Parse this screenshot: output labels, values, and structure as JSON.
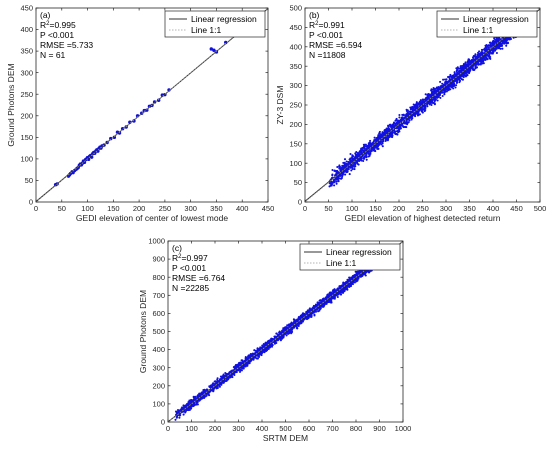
{
  "chart_data": [
    {
      "type": "scatter",
      "panel_label": "(a)",
      "xlabel": "GEDI elevation of center of lowest mode",
      "ylabel": "Ground Photons DEM",
      "xlim": [
        0,
        450
      ],
      "ylim": [
        0,
        450
      ],
      "xticks": [
        "0",
        "50",
        "100",
        "150",
        "200",
        "250",
        "300",
        "350",
        "400",
        "450"
      ],
      "yticks": [
        "0",
        "50",
        "100",
        "150",
        "200",
        "250",
        "300",
        "350",
        "400",
        "450"
      ],
      "stats": {
        "r2": "=0.995",
        "p": "P <0.001",
        "rmse": "RMSE =5.733",
        "n": "N = 61"
      },
      "legend": {
        "position": "top-right",
        "entries": [
          "Linear regression",
          "Line 1:1"
        ]
      },
      "regression": {
        "slope": 0.995,
        "intercept": 1.0
      },
      "points": [
        [
          38,
          40
        ],
        [
          41,
          42
        ],
        [
          63,
          60
        ],
        [
          65,
          63
        ],
        [
          67,
          66
        ],
        [
          70,
          70
        ],
        [
          72,
          68
        ],
        [
          75,
          73
        ],
        [
          78,
          76
        ],
        [
          80,
          78
        ],
        [
          82,
          80
        ],
        [
          84,
          85
        ],
        [
          86,
          88
        ],
        [
          88,
          86
        ],
        [
          90,
          90
        ],
        [
          92,
          95
        ],
        [
          94,
          92
        ],
        [
          96,
          98
        ],
        [
          98,
          100
        ],
        [
          100,
          103
        ],
        [
          102,
          99
        ],
        [
          104,
          106
        ],
        [
          106,
          108
        ],
        [
          108,
          104
        ],
        [
          110,
          112
        ],
        [
          112,
          115
        ],
        [
          114,
          113
        ],
        [
          116,
          118
        ],
        [
          118,
          121
        ],
        [
          120,
          118
        ],
        [
          122,
          124
        ],
        [
          124,
          127
        ],
        [
          126,
          125
        ],
        [
          128,
          130
        ],
        [
          132,
          132
        ],
        [
          138,
          138
        ],
        [
          145,
          147
        ],
        [
          152,
          150
        ],
        [
          158,
          162
        ],
        [
          162,
          160
        ],
        [
          168,
          170
        ],
        [
          175,
          174
        ],
        [
          182,
          185
        ],
        [
          190,
          188
        ],
        [
          197,
          200
        ],
        [
          205,
          206
        ],
        [
          210,
          212
        ],
        [
          215,
          213
        ],
        [
          220,
          222
        ],
        [
          225,
          224
        ],
        [
          230,
          232
        ],
        [
          238,
          236
        ],
        [
          245,
          248
        ],
        [
          250,
          249
        ],
        [
          258,
          260
        ],
        [
          340,
          355
        ],
        [
          345,
          352
        ],
        [
          350,
          348
        ],
        [
          368,
          370
        ],
        [
          392,
          395
        ],
        [
          400,
          398
        ]
      ]
    },
    {
      "type": "scatter",
      "panel_label": "(b)",
      "xlabel": "GEDI elevation of highest detected return",
      "ylabel": "ZY-3 DSM",
      "xlim": [
        0,
        500
      ],
      "ylim": [
        0,
        500
      ],
      "xticks": [
        "0",
        "50",
        "100",
        "150",
        "200",
        "250",
        "300",
        "350",
        "400",
        "450",
        "500"
      ],
      "yticks": [
        "0",
        "50",
        "100",
        "150",
        "200",
        "250",
        "300",
        "350",
        "400",
        "450",
        "500"
      ],
      "stats": {
        "r2": "=0.991",
        "p": "P <0.001",
        "rmse": "RMSE =6.594",
        "n": "N =11808"
      },
      "legend": {
        "position": "top-right",
        "entries": [
          "Linear regression",
          "Line 1:1"
        ]
      },
      "regression": {
        "slope": 0.991,
        "intercept": 2.0
      },
      "dense": {
        "xmin": 52,
        "xmax": 470,
        "spread": 9,
        "count": 2600,
        "seed": 11
      }
    },
    {
      "type": "scatter",
      "panel_label": "(c)",
      "xlabel": "SRTM DEM",
      "ylabel": "Ground Photons DEM",
      "xlim": [
        0,
        1000
      ],
      "ylim": [
        0,
        1000
      ],
      "xticks": [
        "0",
        "100",
        "200",
        "300",
        "400",
        "500",
        "600",
        "700",
        "800",
        "900",
        "1000"
      ],
      "yticks": [
        "0",
        "100",
        "200",
        "300",
        "400",
        "500",
        "600",
        "700",
        "800",
        "900",
        "1000"
      ],
      "stats": {
        "r2": "=0.997",
        "p": "P <0.001",
        "rmse": "RMSE =6.764",
        "n": "N =22285"
      },
      "legend": {
        "position": "top-right",
        "entries": [
          "Linear regression",
          "Line 1:1"
        ]
      },
      "regression": {
        "slope": 0.997,
        "intercept": 1.0
      },
      "dense": {
        "xmin": 30,
        "xmax": 940,
        "spread": 12,
        "count": 2800,
        "seed": 29
      }
    }
  ],
  "colors": {
    "points": "#1010e0",
    "regression": "#303030",
    "identity": "#9a9a9a"
  }
}
